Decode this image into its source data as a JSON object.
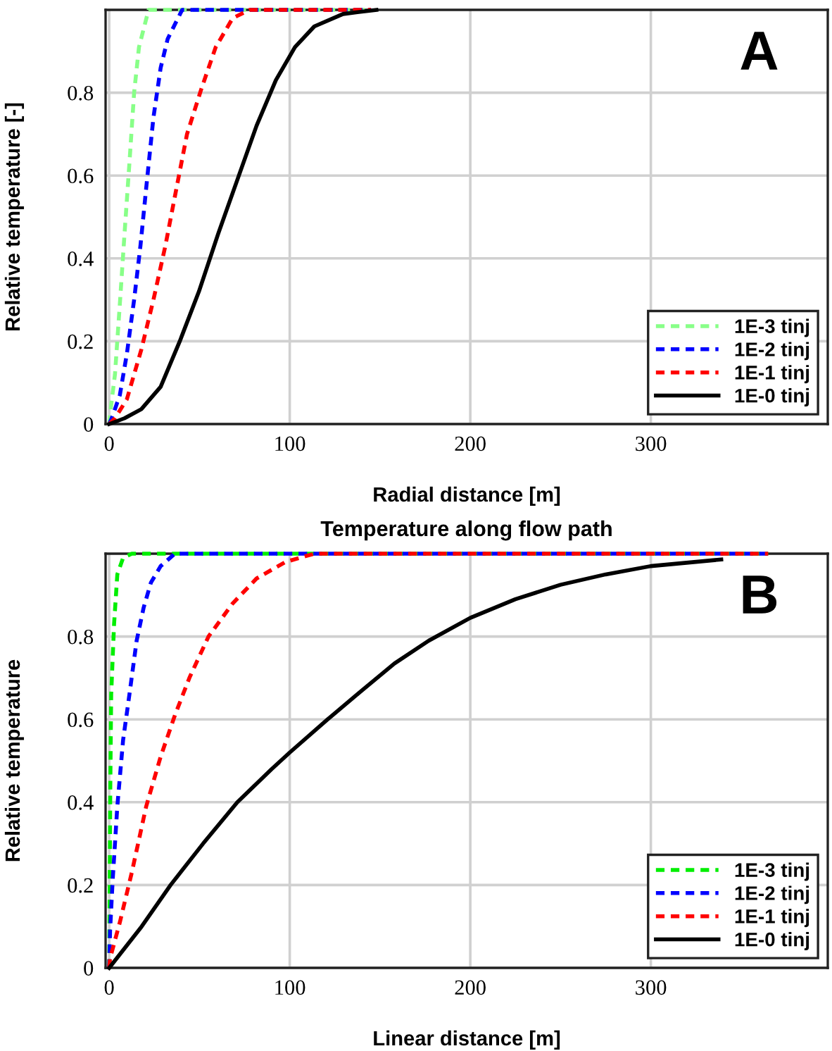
{
  "chart_data": [
    {
      "type": "line",
      "xlabel": "Radial distance [m]",
      "ylabel": "Relative temperature [-]",
      "annotations": [
        "A"
      ],
      "xlim": [
        -2,
        398
      ],
      "ylim": [
        0,
        1
      ],
      "xticks": [
        0,
        100,
        200,
        300
      ],
      "yticks": [
        0,
        0.2,
        0.4,
        0.6,
        0.8
      ],
      "grid": true,
      "legend": "bottom right",
      "marker": "none",
      "series": [
        {
          "name": "1E-3 tinj",
          "color": "#88ff88",
          "line_style": "dashed",
          "x": [
            0,
            0.5,
            3.2,
            5.9,
            8.5,
            11.2,
            13.8,
            16.5,
            21.8,
            145
          ],
          "values": [
            0,
            0.025,
            0.12,
            0.29,
            0.46,
            0.63,
            0.8,
            0.91,
            1,
            1
          ]
        },
        {
          "name": "1E-2 tinj",
          "color": "#0000ff",
          "line_style": "dashed",
          "x": [
            0,
            1.9,
            5.9,
            9.8,
            13.8,
            17.3,
            20.5,
            24.5,
            28.5,
            32.4,
            40.4,
            145
          ],
          "values": [
            0,
            0.02,
            0.07,
            0.17,
            0.3,
            0.43,
            0.57,
            0.74,
            0.86,
            0.93,
            1,
            1
          ]
        },
        {
          "name": "1E-1 tinj",
          "color": "#ff0000",
          "line_style": "dashed",
          "x": [
            0,
            3.2,
            9.8,
            17.8,
            24.5,
            31.1,
            36.4,
            43.1,
            51.1,
            59,
            68.4,
            77.7,
            145
          ],
          "values": [
            0,
            0.014,
            0.06,
            0.18,
            0.3,
            0.43,
            0.55,
            0.7,
            0.81,
            0.91,
            0.98,
            1,
            1
          ]
        },
        {
          "name": "1E-0 tinj",
          "color": "#000000",
          "line_style": "solid",
          "x": [
            0,
            8.5,
            17.8,
            28.5,
            39.1,
            49.7,
            60.4,
            71,
            81.6,
            92.3,
            102.9,
            113.6,
            129.5,
            148
          ],
          "values": [
            0,
            0.014,
            0.036,
            0.09,
            0.2,
            0.32,
            0.46,
            0.59,
            0.72,
            0.83,
            0.91,
            0.96,
            0.99,
            1
          ]
        }
      ]
    },
    {
      "type": "line",
      "title": "Temperature along flow path",
      "xlabel": "Linear distance [m]",
      "ylabel": "Relative temperature",
      "annotations": [
        "B"
      ],
      "xlim": [
        -2,
        398
      ],
      "ylim": [
        0,
        1
      ],
      "xticks": [
        0,
        100,
        200,
        300
      ],
      "yticks": [
        0,
        0.2,
        0.4,
        0.6,
        0.8
      ],
      "grid": true,
      "legend": "bottom right",
      "marker": "none",
      "series": [
        {
          "name": "1E-3 tinj",
          "color": "#00ee00",
          "line_style": "dashed",
          "x": [
            0,
            0.3,
            0.6,
            1.1,
            2.7,
            4.5,
            7.7,
            12.5,
            365
          ],
          "values": [
            0,
            0.21,
            0.43,
            0.66,
            0.83,
            0.95,
            0.99,
            1,
            1
          ]
        },
        {
          "name": "1E-2 tinj",
          "color": "#0000ff",
          "line_style": "dashed",
          "x": [
            0,
            0.5,
            1.9,
            4.5,
            7.7,
            11.2,
            15.2,
            19.1,
            23.1,
            28.5,
            36.4,
            365
          ],
          "values": [
            0,
            0.09,
            0.21,
            0.39,
            0.55,
            0.66,
            0.79,
            0.87,
            0.93,
            0.97,
            1,
            1
          ]
        },
        {
          "name": "1E-1 tinj",
          "color": "#ff0000",
          "line_style": "dashed",
          "x": [
            0,
            0.5,
            5.9,
            12.5,
            20.5,
            28.5,
            36.4,
            44.4,
            55,
            68.4,
            81.6,
            97.6,
            113.6,
            129.5,
            365
          ],
          "values": [
            0,
            0.023,
            0.11,
            0.23,
            0.39,
            0.51,
            0.61,
            0.7,
            0.8,
            0.88,
            0.94,
            0.98,
            1,
            1,
            1
          ]
        },
        {
          "name": "1E-0 tinj",
          "color": "#000000",
          "line_style": "solid",
          "x": [
            0,
            18,
            34,
            52,
            71,
            90,
            100,
            121,
            140,
            158,
            177,
            200,
            225,
            250,
            275,
            300,
            339
          ],
          "values": [
            0,
            0.1,
            0.2,
            0.3,
            0.4,
            0.48,
            0.52,
            0.6,
            0.67,
            0.735,
            0.79,
            0.845,
            0.89,
            0.925,
            0.95,
            0.97,
            0.986
          ]
        }
      ]
    }
  ]
}
